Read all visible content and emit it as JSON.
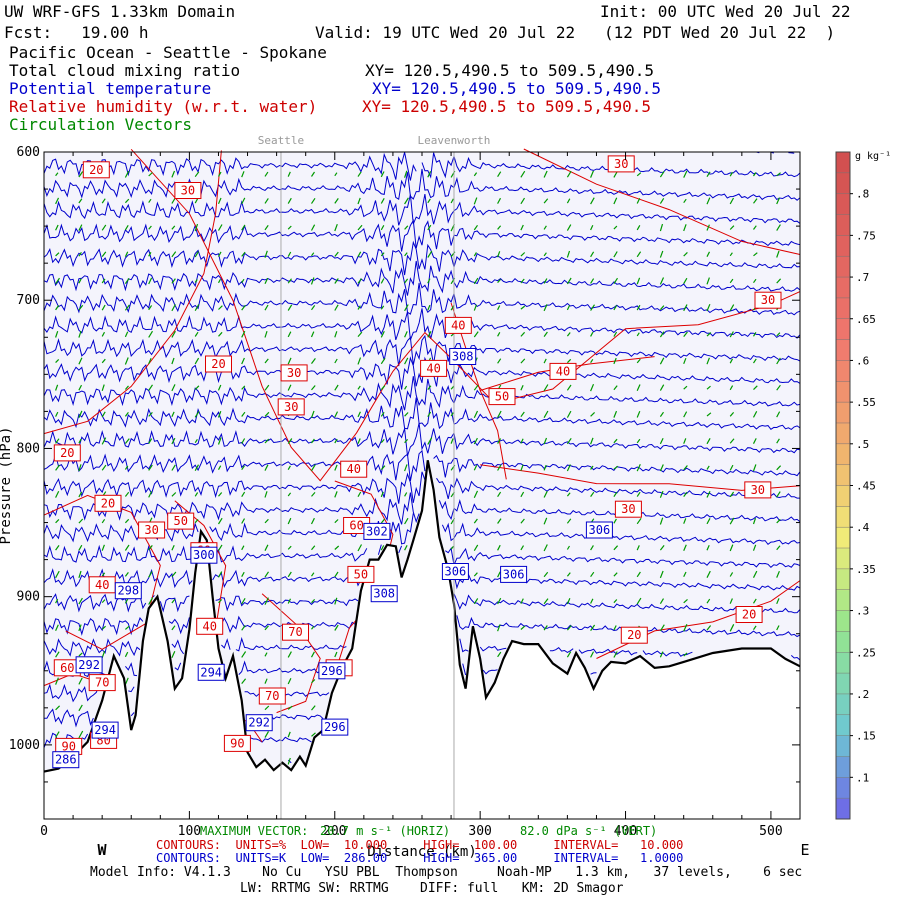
{
  "header": {
    "title": "UW WRF-GFS 1.33km Domain",
    "init": "Init: 00 UTC Wed 20 Jul 22",
    "fcst": "Fcst:   19.00 h",
    "valid": "Valid: 19 UTC Wed 20 Jul 22   (12 PDT Wed 20 Jul 22  )",
    "region": "Pacific Ocean - Seattle - Spokane",
    "var1": "Total cloud mixing ratio",
    "var1_xy": "XY= 120.5,490.5 to 509.5,490.5",
    "var2": "Potential temperature",
    "var2_xy": "XY= 120.5,490.5 to 509.5,490.5",
    "var3": "Relative humidity (w.r.t. water)",
    "var3_xy": "XY= 120.5,490.5 to 509.5,490.5",
    "var4": "Circulation Vectors"
  },
  "colors": {
    "theta": "#0000cc",
    "rh": "#dd0000",
    "vectors": "#009900",
    "terrain": "#000000",
    "background": "#f4f4fc"
  },
  "chart_data": {
    "type": "line",
    "xlabel": "Distance (km)",
    "ylabel": "Pressure (hPa)",
    "xlim": [
      0,
      520
    ],
    "ylim": [
      1050,
      600
    ],
    "x_ticks": [
      0,
      100,
      200,
      300,
      400,
      500
    ],
    "y_ticks": [
      600,
      700,
      800,
      900,
      1000
    ],
    "location_markers": [
      {
        "name": "Seattle",
        "x": 163
      },
      {
        "name": "Leavenworth",
        "x": 282
      }
    ],
    "direction_labels": {
      "west": "W",
      "east": "E"
    },
    "terrain_height_hpa": [
      [
        0,
        1018
      ],
      [
        10,
        1016
      ],
      [
        20,
        1008
      ],
      [
        30,
        998
      ],
      [
        40,
        970
      ],
      [
        48,
        940
      ],
      [
        55,
        955
      ],
      [
        60,
        990
      ],
      [
        63,
        980
      ],
      [
        68,
        930
      ],
      [
        72,
        908
      ],
      [
        78,
        900
      ],
      [
        85,
        930
      ],
      [
        90,
        962
      ],
      [
        95,
        955
      ],
      [
        100,
        922
      ],
      [
        104,
        884
      ],
      [
        108,
        856
      ],
      [
        112,
        862
      ],
      [
        116,
        900
      ],
      [
        120,
        935
      ],
      [
        125,
        955
      ],
      [
        130,
        940
      ],
      [
        136,
        970
      ],
      [
        140,
        1005
      ],
      [
        146,
        1015
      ],
      [
        152,
        1010
      ],
      [
        158,
        1017
      ],
      [
        164,
        1012
      ],
      [
        170,
        1017
      ],
      [
        176,
        1008
      ],
      [
        180,
        1014
      ],
      [
        186,
        995
      ],
      [
        192,
        990
      ],
      [
        198,
        965
      ],
      [
        205,
        948
      ],
      [
        212,
        935
      ],
      [
        218,
        896
      ],
      [
        224,
        875
      ],
      [
        230,
        875
      ],
      [
        236,
        865
      ],
      [
        242,
        866
      ],
      [
        246,
        887
      ],
      [
        250,
        875
      ],
      [
        254,
        862
      ],
      [
        260,
        842
      ],
      [
        264,
        808
      ],
      [
        268,
        828
      ],
      [
        272,
        860
      ],
      [
        278,
        882
      ],
      [
        282,
        905
      ],
      [
        286,
        946
      ],
      [
        290,
        962
      ],
      [
        295,
        920
      ],
      [
        300,
        942
      ],
      [
        304,
        968
      ],
      [
        310,
        958
      ],
      [
        316,
        942
      ],
      [
        322,
        930
      ],
      [
        330,
        932
      ],
      [
        340,
        932
      ],
      [
        350,
        945
      ],
      [
        360,
        952
      ],
      [
        366,
        938
      ],
      [
        372,
        948
      ],
      [
        378,
        962
      ],
      [
        384,
        950
      ],
      [
        390,
        944
      ],
      [
        400,
        945
      ],
      [
        410,
        940
      ],
      [
        420,
        948
      ],
      [
        430,
        947
      ],
      [
        440,
        944
      ],
      [
        460,
        938
      ],
      [
        480,
        935
      ],
      [
        500,
        935
      ],
      [
        510,
        942
      ],
      [
        520,
        947
      ]
    ],
    "theta_levels_k": [
      286,
      288,
      290,
      292,
      294,
      296,
      298,
      300,
      302,
      304,
      306,
      308,
      310,
      312,
      314,
      316,
      318,
      320,
      322,
      324,
      326,
      328,
      330,
      332,
      334,
      336,
      338,
      340
    ],
    "theta_labels": [
      {
        "label": "286",
        "x": 15,
        "p": 1010
      },
      {
        "label": "292",
        "x": 31,
        "p": 946
      },
      {
        "label": "294",
        "x": 42,
        "p": 990
      },
      {
        "label": "298",
        "x": 58,
        "p": 896
      },
      {
        "label": "294",
        "x": 115,
        "p": 951
      },
      {
        "label": "292",
        "x": 148,
        "p": 985
      },
      {
        "label": "296",
        "x": 198,
        "p": 950
      },
      {
        "label": "296",
        "x": 200,
        "p": 988
      },
      {
        "label": "302",
        "x": 229,
        "p": 856
      },
      {
        "label": "308",
        "x": 234,
        "p": 898
      },
      {
        "label": "300",
        "x": 110,
        "p": 872
      },
      {
        "label": "306",
        "x": 283,
        "p": 883
      },
      {
        "label": "306",
        "x": 323,
        "p": 885
      },
      {
        "label": "308",
        "x": 288,
        "p": 738
      },
      {
        "label": "306",
        "x": 382,
        "p": 855
      }
    ],
    "rh_labels": [
      {
        "label": "20",
        "x": 36,
        "p": 612
      },
      {
        "label": "30",
        "x": 99,
        "p": 626
      },
      {
        "label": "30",
        "x": 397,
        "p": 608
      },
      {
        "label": "30",
        "x": 498,
        "p": 700
      },
      {
        "label": "20",
        "x": 120,
        "p": 743
      },
      {
        "label": "30",
        "x": 172,
        "p": 749
      },
      {
        "label": "30",
        "x": 170,
        "p": 772
      },
      {
        "label": "40",
        "x": 285,
        "p": 717
      },
      {
        "label": "40",
        "x": 268,
        "p": 746
      },
      {
        "label": "40",
        "x": 357,
        "p": 748
      },
      {
        "label": "50",
        "x": 315,
        "p": 765
      },
      {
        "label": "20",
        "x": 16,
        "p": 803
      },
      {
        "label": "40",
        "x": 213,
        "p": 814
      },
      {
        "label": "30",
        "x": 491,
        "p": 828
      },
      {
        "label": "30",
        "x": 402,
        "p": 841
      },
      {
        "label": "20",
        "x": 44,
        "p": 837
      },
      {
        "label": "30",
        "x": 74,
        "p": 855
      },
      {
        "label": "50",
        "x": 94,
        "p": 849
      },
      {
        "label": "60",
        "x": 110,
        "p": 869
      },
      {
        "label": "60",
        "x": 215,
        "p": 852
      },
      {
        "label": "50",
        "x": 218,
        "p": 885
      },
      {
        "label": "40",
        "x": 40,
        "p": 892
      },
      {
        "label": "40",
        "x": 114,
        "p": 920
      },
      {
        "label": "70",
        "x": 173,
        "p": 924
      },
      {
        "label": "60",
        "x": 203,
        "p": 948
      },
      {
        "label": "70",
        "x": 157,
        "p": 967
      },
      {
        "label": "60",
        "x": 16,
        "p": 948
      },
      {
        "label": "70",
        "x": 40,
        "p": 958
      },
      {
        "label": "90",
        "x": 17,
        "p": 1001
      },
      {
        "label": "80",
        "x": 41,
        "p": 997
      },
      {
        "label": "90",
        "x": 133,
        "p": 999
      },
      {
        "label": "20",
        "x": 485,
        "p": 912
      },
      {
        "label": "20",
        "x": 406,
        "p": 926
      }
    ],
    "colorbar": {
      "unit": "g kg⁻¹",
      "ticks": [
        ".1",
        ".15",
        ".2",
        ".25",
        ".3",
        ".35",
        ".4",
        ".45",
        ".5",
        ".55",
        ".6",
        ".65",
        ".7",
        ".75",
        ".8"
      ],
      "max_value": 0.85,
      "min_value": 0.05
    }
  },
  "footer": {
    "max_vector_prefix": "MAXIMUM VECTOR:",
    "max_vector_h": "20.7 m s⁻¹ (HORIZ)",
    "max_vector_v": "82.0 dPa s⁻¹ (VERT)",
    "rh_contours": "CONTOURS:  UNITS=%  LOW=  10.000     HIGH=  100.00     INTERVAL=   10.000",
    "theta_contours": "CONTOURS:  UNITS=K  LOW=  286.00     HIGH=  365.00     INTERVAL=   1.0000",
    "model_info": "Model Info: V4.1.3    No Cu   YSU PBL  Thompson     Noah-MP   1.3 km,   37 levels,    6 sec",
    "model_info2": "LW: RRTMG SW: RRTMG    DIFF: full   KM: 2D Smagor"
  }
}
